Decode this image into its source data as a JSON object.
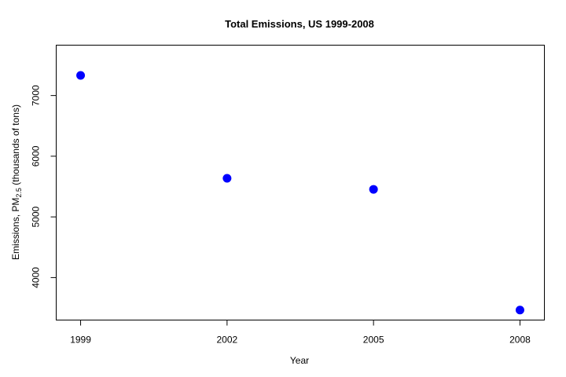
{
  "chart_data": {
    "type": "scatter",
    "title": "Total Emissions, US 1999-2008",
    "xlabel": "Year",
    "ylabel": {
      "prefix": "Emissions, PM",
      "subscript": "2.5",
      "suffix": " (thousands of tons)"
    },
    "x": [
      1999,
      2002,
      2005,
      2008
    ],
    "y": [
      7332,
      5636,
      5454,
      3465
    ],
    "xticks": [
      "1999",
      "2002",
      "2005",
      "2008"
    ],
    "yticks": [
      "4000",
      "5000",
      "6000",
      "7000"
    ],
    "xlim": [
      1998.5,
      2008.5
    ],
    "ylim": [
      3300,
      7830
    ],
    "point_color": "#0000ff",
    "grid": false,
    "legend": "none"
  }
}
